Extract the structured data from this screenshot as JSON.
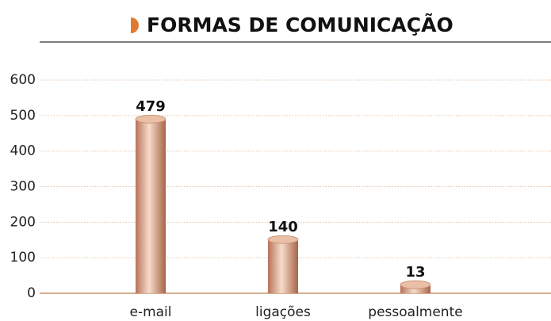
{
  "chart_data": {
    "type": "bar",
    "title": "FORMAS DE COMUNICAÇÃO",
    "categories": [
      "e-mail",
      "ligações",
      "pessoalmente"
    ],
    "values": [
      479,
      140,
      13
    ],
    "color": "#c98a6a",
    "ylim": [
      0,
      600
    ],
    "yticks": [
      0,
      100,
      200,
      300,
      400,
      500,
      600
    ],
    "grid": true
  }
}
